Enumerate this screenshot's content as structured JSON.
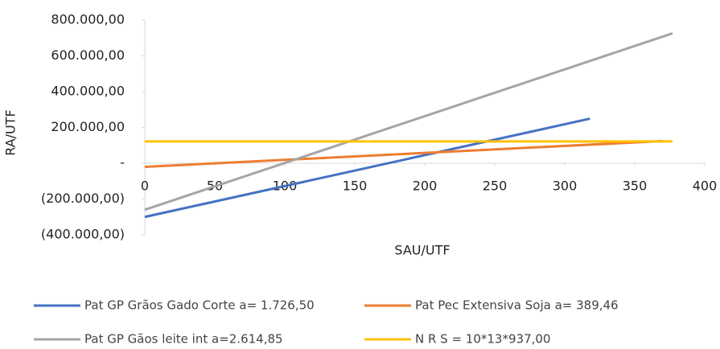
{
  "chart_data": {
    "type": "line",
    "x_label": "SAU/UTF",
    "y_label": "RA/UTF",
    "xlim": [
      0,
      400
    ],
    "xticks": [
      0,
      50,
      100,
      150,
      200,
      250,
      300,
      350,
      400
    ],
    "ylim": [
      -400000,
      800000
    ],
    "yticks": [
      {
        "value": -400000,
        "label": "(400.000,00)"
      },
      {
        "value": -200000,
        "label": "(200.000,00)"
      },
      {
        "value": 0,
        "label": "-"
      },
      {
        "value": 200000,
        "label": "200.000,00"
      },
      {
        "value": 400000,
        "label": "400.000,00"
      },
      {
        "value": 600000,
        "label": "600.000,00"
      },
      {
        "value": 800000,
        "label": "800.000,00"
      }
    ],
    "grid": false,
    "series": [
      {
        "name": "Pat GP Grãos Gado Corte  a= 1.726,50",
        "color": "#4472c4",
        "x": [
          0,
          318
        ],
        "values": [
          -300000,
          249000
        ]
      },
      {
        "name": "Pat Pec Extensiva Soja a= 389,46",
        "color": "#ed7d31",
        "x": [
          0,
          370
        ],
        "values": [
          -20000,
          124000
        ]
      },
      {
        "name": "Pat GP Gãos leite int a=2.614,85",
        "color": "#a5a5a5",
        "x": [
          0,
          377
        ],
        "values": [
          -260000,
          726000
        ]
      },
      {
        "name": "N R S = 10*13*937,00",
        "color": "#ffc000",
        "x": [
          0,
          377
        ],
        "values": [
          121810,
          121810
        ]
      }
    ]
  }
}
